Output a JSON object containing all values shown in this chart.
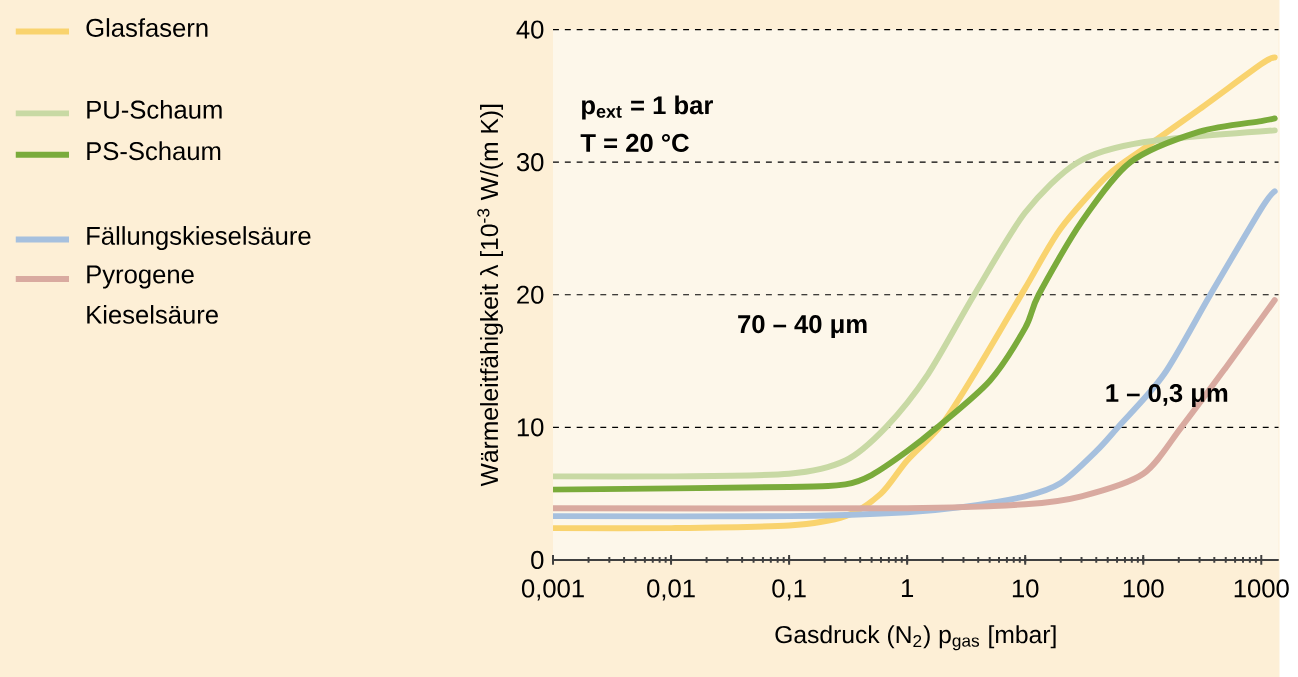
{
  "chart_data": {
    "type": "line",
    "xlabel": "Gasdruck (N$_{2}$) p$_{gas}$ [mbar]",
    "ylabel": "Wärmeleitfähigkeit λ [10$^{-3}$ W/(m K)]",
    "log": "x",
    "grid": "y",
    "legend": "left",
    "line_style": "solid",
    "marker": "none",
    "xlim": [
      0.001,
      1400
    ],
    "ylim": [
      0,
      40
    ],
    "xticks": [
      {
        "value": 0.001,
        "label": "0,001"
      },
      {
        "value": 0.01,
        "label": "0,01"
      },
      {
        "value": 0.1,
        "label": "0,1"
      },
      1,
      10,
      100,
      1000
    ],
    "yticks": [
      0,
      10,
      20,
      30,
      40
    ],
    "annotations": [
      "p$_{ext}$ = 1 bar",
      "T = 20 °C",
      "70 – 40 μm",
      "1 – 0,3 μm"
    ],
    "series": [
      {
        "name": "Glasfasern",
        "color": "#f9d36e",
        "x": [
          0.001,
          0.01,
          0.1,
          0.3,
          0.6,
          1,
          2,
          4,
          10,
          20,
          50,
          100,
          300,
          1000,
          1300
        ],
        "values": [
          2.4,
          2.4,
          2.6,
          3.3,
          5,
          7.5,
          10.3,
          14.5,
          20.5,
          25,
          29,
          31,
          34,
          37.4,
          37.9
        ]
      },
      {
        "name": "PU-Schaum",
        "color": "#c8d9a4",
        "x": [
          0.001,
          0.01,
          0.1,
          0.3,
          0.66,
          1.5,
          3.7,
          10,
          28,
          100,
          1300
        ],
        "values": [
          6.3,
          6.3,
          6.5,
          7.5,
          10,
          14,
          20,
          26.2,
          30,
          31.5,
          32.4
        ]
      },
      {
        "name": "PS-Schaum",
        "color": "#7aab3b",
        "x": [
          0.001,
          0.1,
          0.3,
          0.5,
          1,
          1.8,
          5,
          10,
          13,
          30,
          78,
          300,
          1000,
          1300
        ],
        "values": [
          5.3,
          5.5,
          5.7,
          6.4,
          8.2,
          10,
          13.5,
          17.5,
          20,
          25.5,
          30,
          32.3,
          33.1,
          33.3
        ]
      },
      {
        "name": "Fällungskieselsäure",
        "color": "#a6c0de",
        "x": [
          0.001,
          0.1,
          1,
          3,
          10,
          20,
          40,
          61,
          150,
          370,
          1000,
          1300
        ],
        "values": [
          3.3,
          3.3,
          3.6,
          4,
          4.8,
          5.8,
          8.2,
          10,
          14,
          20,
          26.5,
          27.8
        ]
      },
      {
        "name": "Pyrogene Kieselsäure",
        "color": "#d9aaa0",
        "x": [
          0.001,
          1,
          10,
          30,
          100,
          210,
          500,
          1000,
          1300
        ],
        "values": [
          3.9,
          3.9,
          4.2,
          4.8,
          6.5,
          10,
          14.5,
          18.2,
          19.6
        ]
      }
    ]
  }
}
